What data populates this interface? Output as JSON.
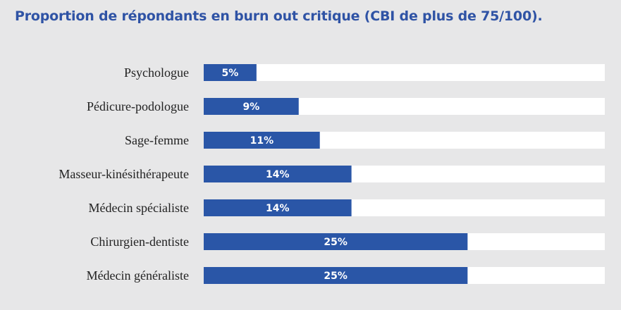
{
  "chart_data": {
    "type": "bar",
    "orientation": "horizontal",
    "title": "Proportion de répondants en burn out critique (CBI de plus de 75/100).",
    "categories": [
      "Psychologue",
      "Pédicure-podologue",
      "Sage-femme",
      "Masseur-kinésithérapeute",
      "Médecin spécialiste",
      "Chirurgien-dentiste",
      "Médecin généraliste"
    ],
    "values": [
      5,
      9,
      11,
      14,
      14,
      25,
      25
    ],
    "value_labels": [
      "5%",
      "9%",
      "11%",
      "14%",
      "14%",
      "25%",
      "25%"
    ],
    "unit": "%",
    "xlim": [
      0,
      38
    ],
    "grid": false,
    "colors": {
      "bar": "#2a56a7",
      "track": "#ffffff",
      "background": "#e7e7e8",
      "title": "#2f53a5"
    }
  }
}
